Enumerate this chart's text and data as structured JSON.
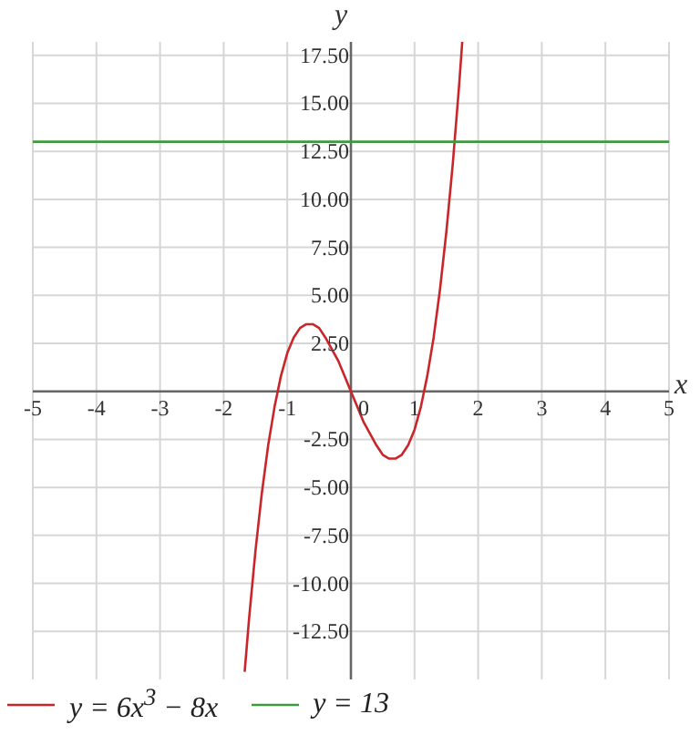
{
  "chart_data": {
    "type": "line",
    "xlabel": "x",
    "ylabel": "y",
    "xlim": [
      -5,
      5
    ],
    "ylim": [
      -15,
      18.2
    ],
    "xticks": [
      -5,
      -4,
      -3,
      -2,
      -1,
      0,
      1,
      2,
      3,
      4,
      5
    ],
    "yticks": [
      {
        "value": -12.5,
        "label": "-12.50"
      },
      {
        "value": -10,
        "label": "-10.00"
      },
      {
        "value": -7.5,
        "label": "-7.50"
      },
      {
        "value": -5,
        "label": "-5.00"
      },
      {
        "value": -2.5,
        "label": "-2.50"
      },
      {
        "value": 0,
        "label": null
      },
      {
        "value": 2.5,
        "label": "2.50"
      },
      {
        "value": 5,
        "label": "5.00"
      },
      {
        "value": 7.5,
        "label": "7.50"
      },
      {
        "value": 10,
        "label": "10.00"
      },
      {
        "value": 12.5,
        "label": "12.50"
      },
      {
        "value": 15,
        "label": "15.00"
      },
      {
        "value": 17.5,
        "label": "17.50"
      }
    ],
    "grid": true,
    "legend": "bottom",
    "marker": "none",
    "line_style": "solid",
    "series": [
      {
        "name": "y = 6x$^{3}$ − 8x",
        "color": "#c8262b",
        "x": [
          -1.67,
          -1.6,
          -1.5,
          -1.4,
          -1.3,
          -1.2,
          -1.1,
          -1.0,
          -0.9,
          -0.8,
          -0.7,
          -0.6,
          -0.5,
          -0.4,
          -0.3,
          -0.2,
          -0.1,
          0,
          0.1,
          0.2,
          0.3,
          0.4,
          0.5,
          0.6,
          0.7,
          0.8,
          0.9,
          1.0,
          1.1,
          1.2,
          1.3,
          1.4,
          1.5,
          1.6,
          1.7,
          1.75
        ],
        "values": [
          -14.6,
          -11.8,
          -8.3,
          -5.3,
          -2.8,
          -0.8,
          0.8,
          2,
          2.8,
          3.3,
          3.5,
          3.5,
          3.3,
          2.8,
          2.2,
          1.6,
          0.8,
          0,
          -0.8,
          -1.6,
          -2.2,
          -2.8,
          -3.3,
          -3.5,
          -3.5,
          -3.3,
          -2.8,
          -2,
          -0.8,
          0.8,
          2.8,
          5.3,
          8.3,
          11.8,
          15.9,
          18.2
        ]
      },
      {
        "name": "y = 13",
        "color": "#3f9a3f",
        "x": [
          -5,
          5
        ],
        "values": [
          13,
          13
        ]
      }
    ]
  }
}
